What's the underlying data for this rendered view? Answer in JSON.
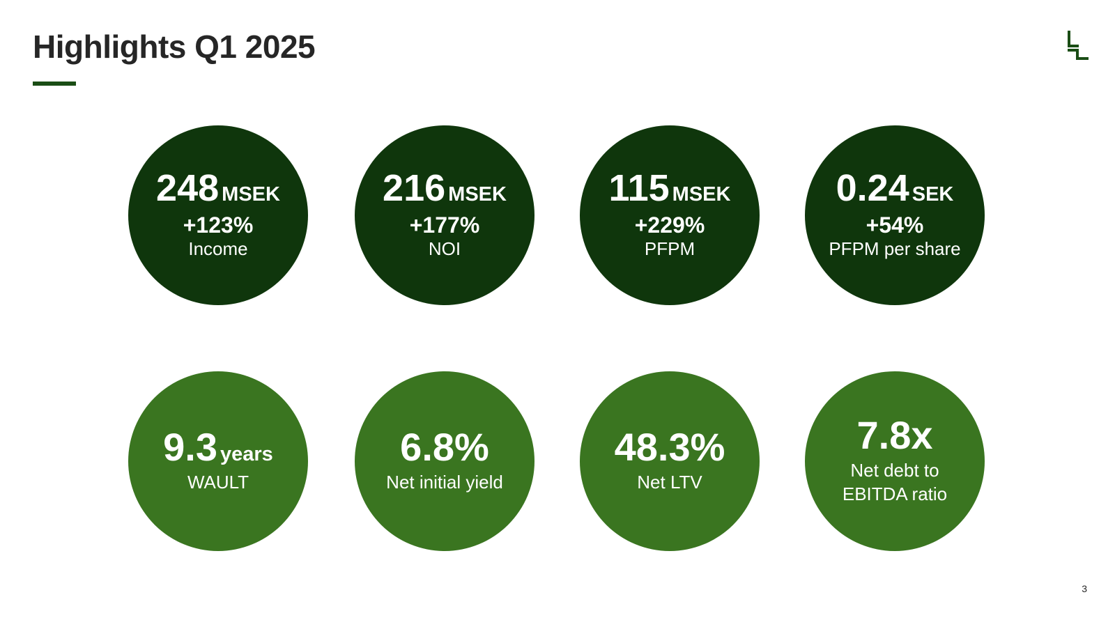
{
  "slide": {
    "title": "Highlights Q1 2025",
    "page_number": "3"
  },
  "colors": {
    "dark_green": "#0f360c",
    "light_green": "#3a7520",
    "accent": "#1a4d15",
    "title_text": "#262626"
  },
  "icons": {
    "logo": "company-logo-icon"
  },
  "highlights": [
    {
      "value": "248",
      "unit": "MSEK",
      "change": "+123%",
      "label": "Income"
    },
    {
      "value": "216",
      "unit": "MSEK",
      "change": "+177%",
      "label": "NOI"
    },
    {
      "value": "115",
      "unit": "MSEK",
      "change": "+229%",
      "label": "PFPM"
    },
    {
      "value": "0.24",
      "unit": "SEK",
      "change": "+54%",
      "label": "PFPM per share"
    }
  ],
  "metrics": [
    {
      "value": "9.3",
      "unit": "years",
      "label": "WAULT"
    },
    {
      "value": "6.8%",
      "label": "Net initial yield"
    },
    {
      "value": "48.3%",
      "label": "Net LTV"
    },
    {
      "value": "7.8x",
      "label_line1": "Net debt to",
      "label_line2": "EBITDA ratio"
    }
  ]
}
